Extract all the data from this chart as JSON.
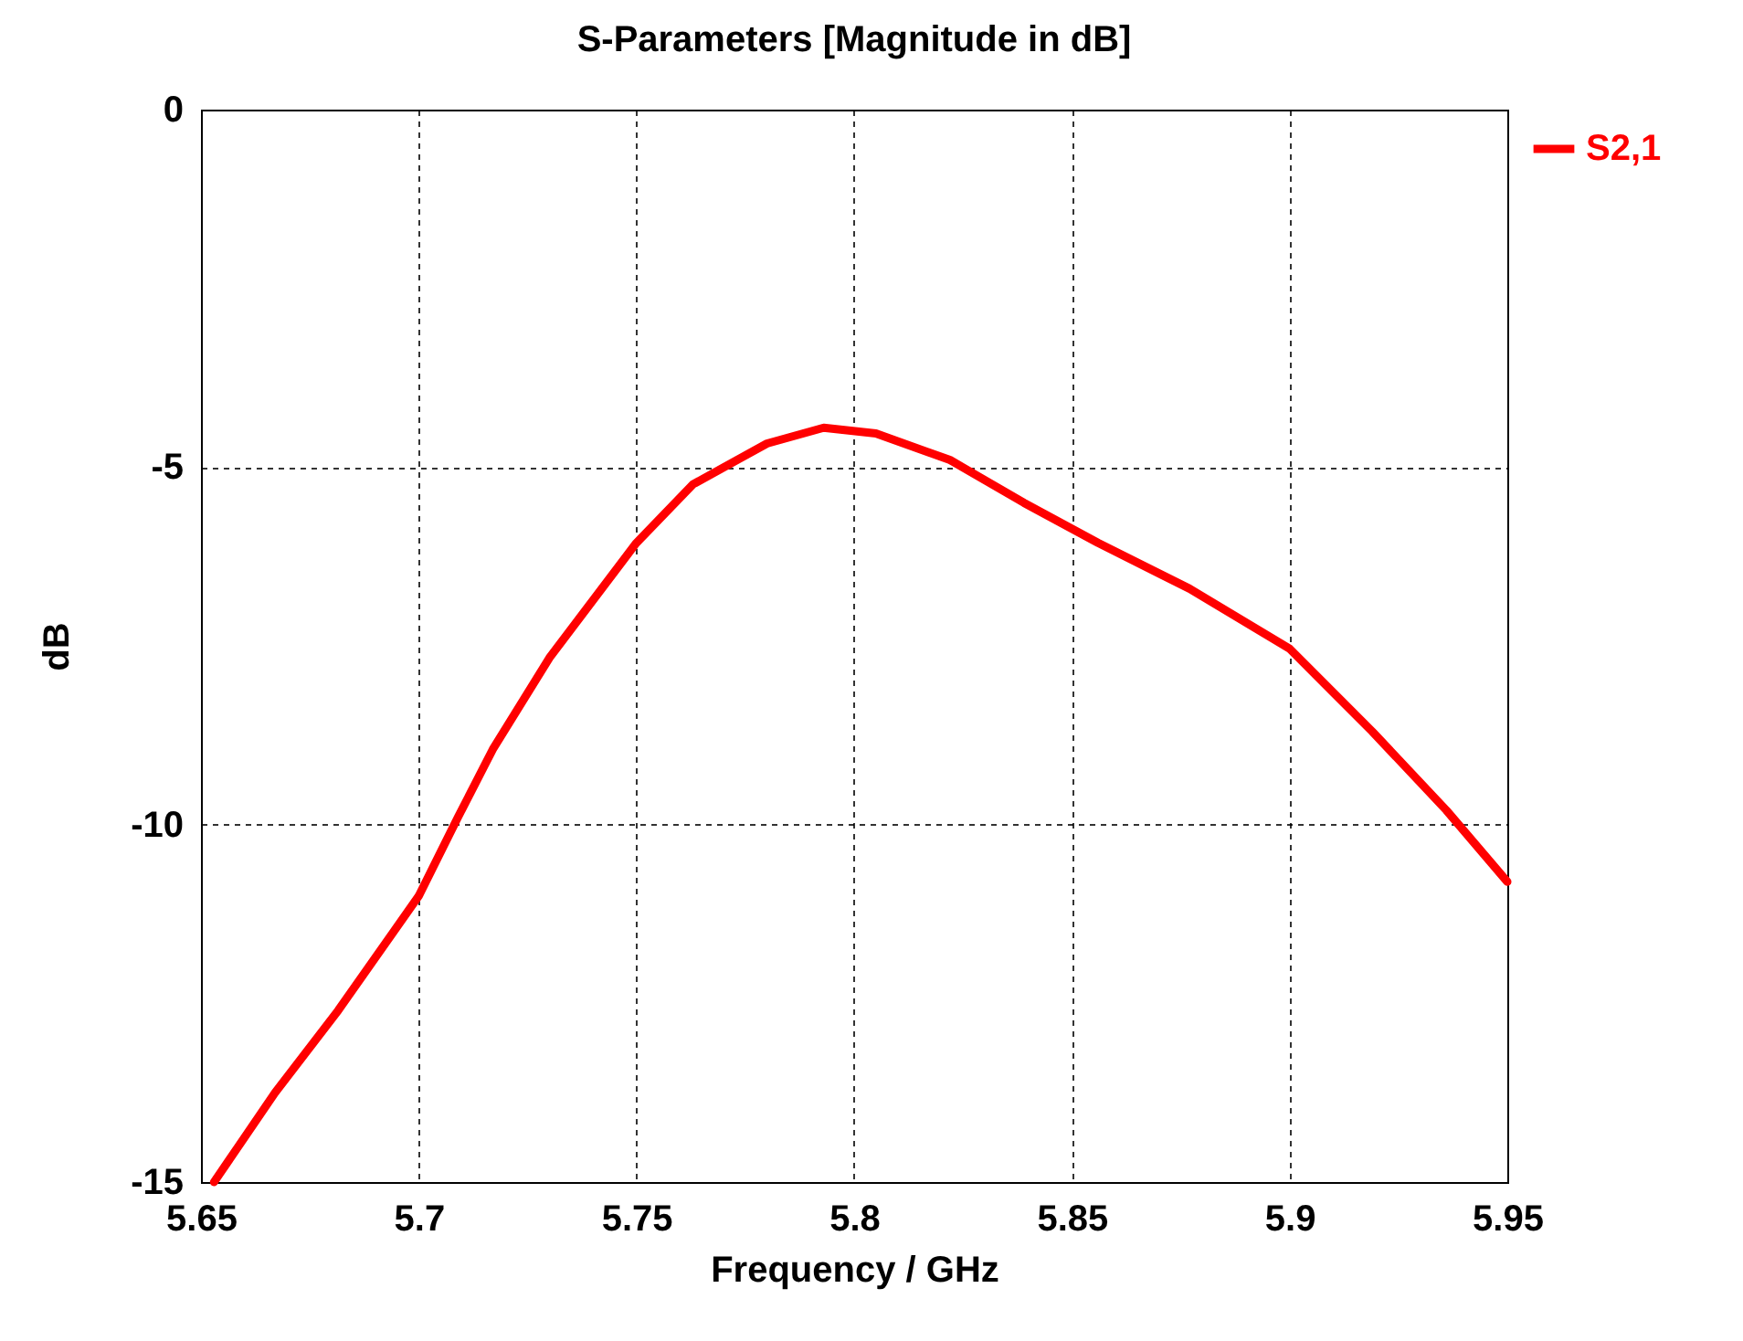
{
  "chart_data": {
    "type": "line",
    "title": "S-Parameters [Magnitude in dB]",
    "xlabel": "Frequency / GHz",
    "ylabel": "dB",
    "xlim": [
      5.65,
      5.95
    ],
    "xticks": [
      5.65,
      5.7,
      5.75,
      5.8,
      5.85,
      5.9,
      5.95
    ],
    "ylim": [
      -15,
      0
    ],
    "yticks": [
      -15,
      -10,
      -5,
      0
    ],
    "grid": true,
    "legend": "top right",
    "line_style": "solid",
    "marker": "none",
    "x": [
      5.653,
      5.667,
      5.6815,
      5.7,
      5.709,
      5.717,
      5.73,
      5.75,
      5.763,
      5.78,
      5.793,
      5.805,
      5.822,
      5.839,
      5.856,
      5.877,
      5.9,
      5.919,
      5.936,
      5.95
    ],
    "series": [
      {
        "name": "S2,1",
        "color": "#ff0000",
        "values": [
          -15,
          -13.75,
          -12.6,
          -11,
          -9.9,
          -8.95,
          -7.67,
          -6.06,
          -5.24,
          -4.67,
          -4.45,
          -4.53,
          -4.9,
          -5.5,
          -6.06,
          -6.7,
          -7.54,
          -8.7,
          -9.8,
          -10.8
        ]
      }
    ]
  }
}
